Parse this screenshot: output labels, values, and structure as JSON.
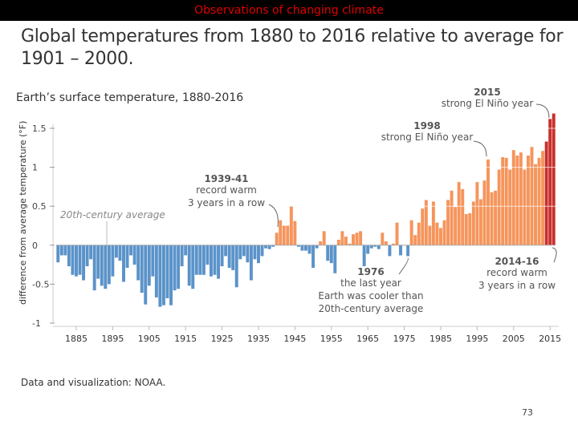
{
  "header": {
    "banner": "Observations of changing climate",
    "title": "Global temperatures from 1880 to 2016 relative to average for 1901 – 2000."
  },
  "footer": {
    "credit": "Data and visualization: NOAA.",
    "page": "73"
  },
  "colors": {
    "cool": "#5b93c9",
    "warm": "#f5955c",
    "record": "#c8302c"
  },
  "chart_data": {
    "type": "bar",
    "title": "Earth’s surface temperature, 1880-2016",
    "ylabel": "difference from average temperature (°F)",
    "xlabel": "",
    "ylim": [
      -1,
      1.5
    ],
    "yticks": [
      "-1",
      "-0.5",
      "0",
      "0.5",
      "1",
      "1.5"
    ],
    "xticks": [
      "1885",
      "1895",
      "1905",
      "1915",
      "1925",
      "1935",
      "1945",
      "1955",
      "1965",
      "1975",
      "1985",
      "1995",
      "2005",
      "2015"
    ],
    "x_start": 1880,
    "x_end": 2016,
    "baseline_label": "20th-century average",
    "values": [
      -0.22,
      -0.13,
      -0.13,
      -0.27,
      -0.38,
      -0.4,
      -0.38,
      -0.45,
      -0.27,
      -0.18,
      -0.58,
      -0.43,
      -0.52,
      -0.56,
      -0.5,
      -0.4,
      -0.16,
      -0.2,
      -0.47,
      -0.29,
      -0.13,
      -0.25,
      -0.45,
      -0.61,
      -0.76,
      -0.52,
      -0.4,
      -0.67,
      -0.79,
      -0.77,
      -0.68,
      -0.77,
      -0.58,
      -0.56,
      -0.27,
      -0.13,
      -0.52,
      -0.56,
      -0.38,
      -0.38,
      -0.38,
      -0.25,
      -0.4,
      -0.38,
      -0.43,
      -0.27,
      -0.14,
      -0.29,
      -0.32,
      -0.54,
      -0.18,
      -0.14,
      -0.22,
      -0.45,
      -0.18,
      -0.23,
      -0.14,
      -0.04,
      -0.05,
      -0.02,
      0.16,
      0.32,
      0.25,
      0.25,
      0.5,
      0.31,
      -0.02,
      -0.07,
      -0.07,
      -0.11,
      -0.29,
      -0.04,
      0.05,
      0.18,
      -0.2,
      -0.23,
      -0.36,
      0.07,
      0.18,
      0.11,
      0.02,
      0.14,
      0.16,
      0.18,
      -0.27,
      -0.11,
      -0.04,
      -0.02,
      -0.05,
      0.16,
      0.05,
      -0.14,
      0.02,
      0.29,
      -0.13,
      0.0,
      -0.14,
      0.32,
      0.13,
      0.29,
      0.47,
      0.58,
      0.25,
      0.56,
      0.29,
      0.22,
      0.32,
      0.58,
      0.7,
      0.49,
      0.81,
      0.72,
      0.4,
      0.41,
      0.56,
      0.81,
      0.59,
      0.83,
      1.1,
      0.68,
      0.7,
      0.97,
      1.13,
      1.12,
      0.97,
      1.22,
      1.15,
      1.19,
      0.97,
      1.15,
      1.26,
      1.04,
      1.12,
      1.21,
      1.33,
      1.62,
      1.69
    ],
    "record_years": [
      2014,
      2015,
      2016
    ],
    "annotations": [
      {
        "year": "1939-41",
        "lines": [
          "record warm",
          "3 years in a row"
        ]
      },
      {
        "year": "1998",
        "lines": [
          "strong El Niño year"
        ]
      },
      {
        "year": "2015",
        "lines": [
          "strong El Niño year"
        ]
      },
      {
        "year": "1976",
        "lines": [
          "the last year",
          "Earth was cooler than",
          "20th-century average"
        ]
      },
      {
        "year": "2014-16",
        "lines": [
          "record warm",
          "3 years in a row"
        ]
      }
    ]
  }
}
